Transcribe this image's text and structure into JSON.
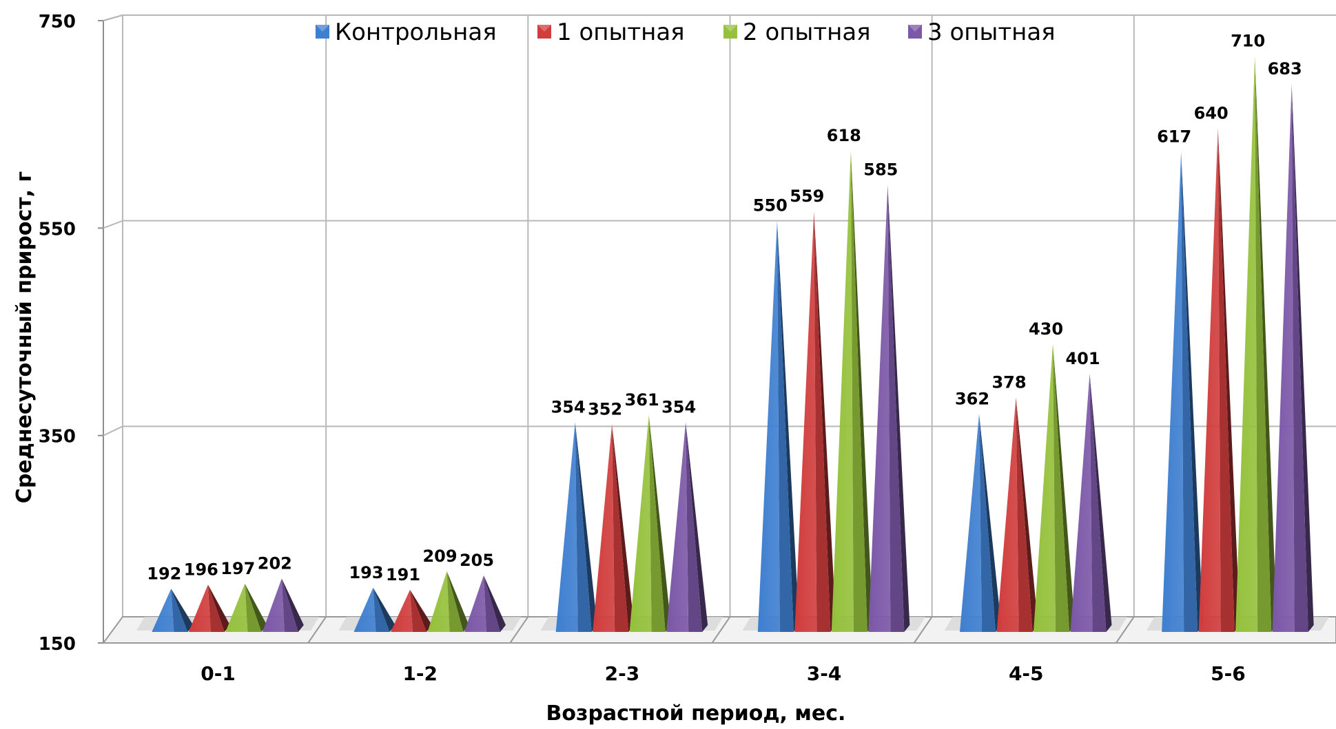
{
  "chart_data": {
    "type": "bar",
    "bar_shape": "3d-pyramid",
    "title": "",
    "xlabel": "Возрастной период, мес.",
    "ylabel": "Среднесуточный прирост, г",
    "ylim": [
      150,
      750
    ],
    "yticks": [
      150,
      350,
      550,
      750
    ],
    "grid": true,
    "legend_position": "top",
    "categories": [
      "0-1",
      "1-2",
      "2-3",
      "3-4",
      "4-5",
      "5-6"
    ],
    "series": [
      {
        "name": "Контрольная",
        "color": "#3f7fd0",
        "values": [
          192,
          193,
          354,
          550,
          362,
          617
        ]
      },
      {
        "name": "1 опытная",
        "color": "#d13d3d",
        "values": [
          196,
          191,
          352,
          559,
          378,
          640
        ]
      },
      {
        "name": "2 опытная",
        "color": "#95c13c",
        "values": [
          197,
          209,
          361,
          618,
          430,
          710
        ]
      },
      {
        "name": "3 опытная",
        "color": "#7c58a8",
        "values": [
          202,
          205,
          354,
          585,
          401,
          683
        ]
      }
    ]
  }
}
